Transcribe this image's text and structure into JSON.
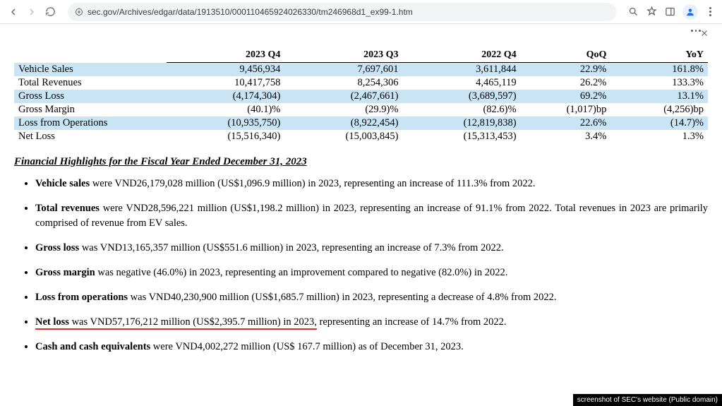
{
  "browser": {
    "url": "sec.gov/Archives/edgar/data/1913510/000110465924026330/tm246968d1_ex99-1.htm"
  },
  "table": {
    "columns": [
      "",
      "2023 Q4",
      "2023 Q3",
      "2022 Q4",
      "QoQ",
      "YoY"
    ],
    "rows": [
      {
        "label": "Vehicle Sales",
        "hl": true,
        "c": [
          "9,456,934",
          "7,697,601",
          "3,611,844",
          "22.9%",
          "161.8%"
        ]
      },
      {
        "label": "Total Revenues",
        "hl": false,
        "c": [
          "10,417,758",
          "8,254,306",
          "4,465,119",
          "26.2%",
          "133.3%"
        ]
      },
      {
        "label": "Gross Loss",
        "hl": true,
        "c": [
          "(4,174,304)",
          "(2,467,661)",
          "(3,689,597)",
          "69.2%",
          "13.1%"
        ]
      },
      {
        "label": "Gross Margin",
        "hl": false,
        "c": [
          "(40.1)%",
          "(29.9)%",
          "(82.6)%",
          "(1,017)bp",
          "(4,256)bp"
        ]
      },
      {
        "label": "Loss from Operations",
        "hl": true,
        "c": [
          "(10,935,750)",
          "(8,922,454)",
          "(12,819,838)",
          "22.6%",
          "(14.7)%"
        ]
      },
      {
        "label": "Net Loss",
        "hl": false,
        "c": [
          "(15,516,340)",
          "(15,003,845)",
          "(15,313,453)",
          "3.4%",
          "1.3%"
        ]
      }
    ]
  },
  "highlights_title": "Financial Highlights for the Fiscal Year Ended December 31, 2023",
  "highlights": [
    {
      "bold": "Vehicle sales",
      "rest": " were VND26,179,028 million (US$1,096.9 million) in 2023, representing an increase of 111.3% from 2022."
    },
    {
      "bold": "Total revenues",
      "rest": " were VND28,596,221 million (US$1,198.2 million) in 2023, representing an increase of 91.1% from 2022. Total revenues in 2023 are primarily comprised of revenue from EV sales."
    },
    {
      "bold": "Gross loss",
      "rest": " was VND13,165,357 million (US$551.6 million) in 2023, representing an increase of 7.3% from 2022."
    },
    {
      "bold": "Gross margin",
      "rest": " was negative (46.0%) in 2023, representing an improvement compared to negative (82.0%) in 2022."
    },
    {
      "bold": "Loss from operations",
      "rest": " was VND40,230,900 million (US$1,685.7 million) in 2023, representing a decrease of 4.8% from 2022."
    },
    {
      "bold": "Net loss",
      "rest_underlined": " was VND57,176,212 million (US$2,395.7 million) in 2023,",
      "rest_after": " representing an increase of 14.7% from 2022."
    },
    {
      "bold": "Cash and cash equivalents",
      "rest": " were VND4,002,272 million (US$ 167.7 million) as of December 31, 2023."
    }
  ],
  "attribution": "screenshot of SEC's website (Public domain)",
  "colors": {
    "row_highlight": "#c9e5f5",
    "underline": "#d93025"
  }
}
